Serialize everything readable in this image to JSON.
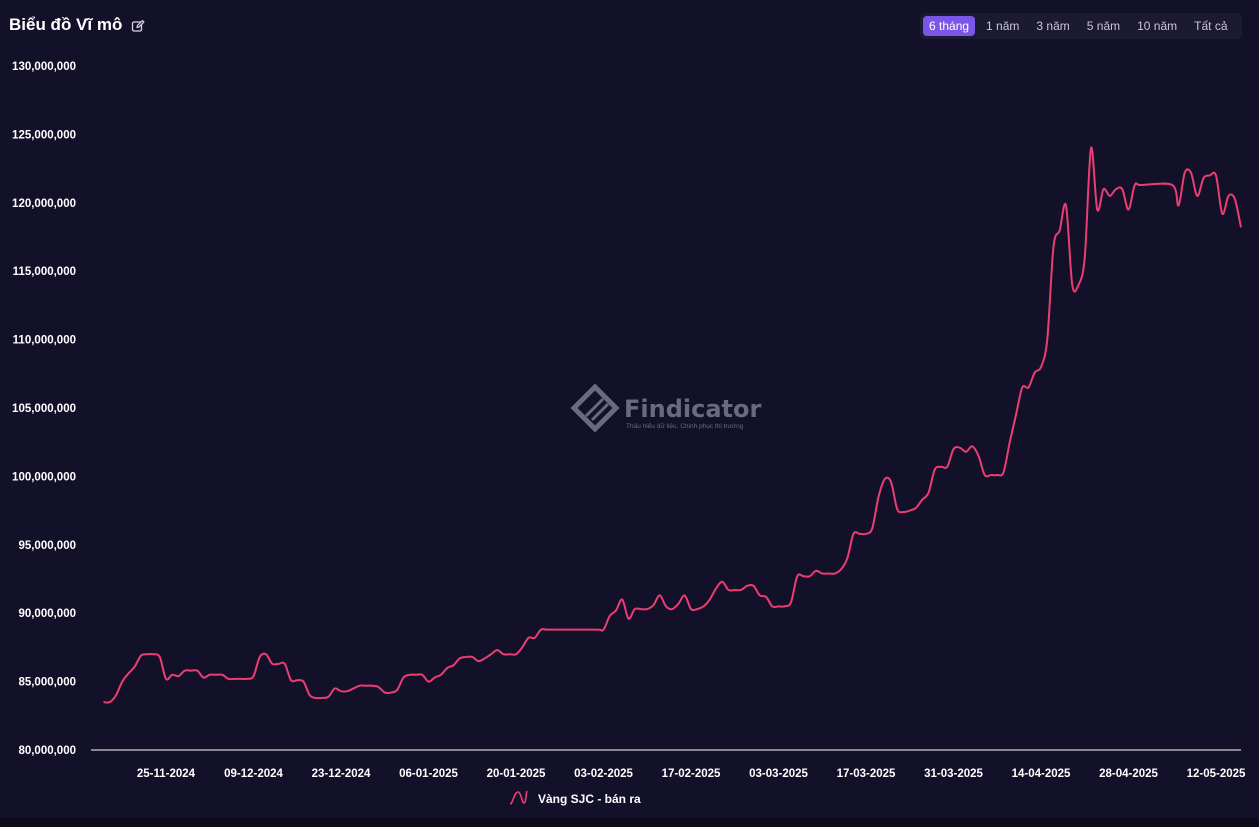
{
  "header": {
    "title": "Biểu đồ Vĩ mô",
    "edit_icon": "pencil-square-icon",
    "ranges": [
      {
        "label": "6 tháng",
        "active": true
      },
      {
        "label": "1 năm",
        "active": false
      },
      {
        "label": "3 năm",
        "active": false
      },
      {
        "label": "5 năm",
        "active": false
      },
      {
        "label": "10 năm",
        "active": false
      },
      {
        "label": "Tất cả",
        "active": false
      }
    ]
  },
  "watermark": {
    "name": "Findicator",
    "tagline": "Thấu hiểu dữ liệu, Chinh phục thị trường",
    "icon": "findicator-logo-icon"
  },
  "colors": {
    "background": "#13112a",
    "line": "#ec3d73",
    "accent": "#7b55e8"
  },
  "chart_data": {
    "type": "line",
    "title": "",
    "xlabel": "",
    "ylabel": "",
    "ylim": [
      80000000,
      130000000
    ],
    "yticks": [
      80000000,
      85000000,
      90000000,
      95000000,
      100000000,
      105000000,
      110000000,
      115000000,
      120000000,
      125000000,
      130000000
    ],
    "ytick_labels": [
      "80,000,000",
      "85,000,000",
      "90,000,000",
      "95,000,000",
      "100,000,000",
      "105,000,000",
      "110,000,000",
      "115,000,000",
      "120,000,000",
      "125,000,000",
      "130,000,000"
    ],
    "xlim": [
      "2024-11-13",
      "2025-05-16"
    ],
    "xticks": [
      "2024-11-25",
      "2024-12-09",
      "2024-12-23",
      "2025-01-06",
      "2025-01-20",
      "2025-02-03",
      "2025-02-17",
      "2025-03-03",
      "2025-03-17",
      "2025-03-31",
      "2025-04-14",
      "2025-04-28",
      "2025-05-12"
    ],
    "xtick_labels": [
      "25-11-2024",
      "09-12-2024",
      "23-12-2024",
      "06-01-2025",
      "20-01-2025",
      "03-02-2025",
      "17-02-2025",
      "03-03-2025",
      "17-03-2025",
      "31-03-2025",
      "14-04-2025",
      "28-04-2025",
      "12-05-2025"
    ],
    "grid": false,
    "legend": "bottom-center",
    "series": [
      {
        "name": "Vàng SJC - bán ra",
        "color": "#ec3d73",
        "points": [
          [
            "2024-11-15",
            83500000
          ],
          [
            "2024-11-16",
            83500000
          ],
          [
            "2024-11-17",
            84000000
          ],
          [
            "2024-11-18",
            85000000
          ],
          [
            "2024-11-19",
            85600000
          ],
          [
            "2024-11-20",
            86100000
          ],
          [
            "2024-11-21",
            86900000
          ],
          [
            "2024-11-22",
            87000000
          ],
          [
            "2024-11-23",
            87000000
          ],
          [
            "2024-11-24",
            86800000
          ],
          [
            "2024-11-25",
            85200000
          ],
          [
            "2024-11-26",
            85500000
          ],
          [
            "2024-11-27",
            85400000
          ],
          [
            "2024-11-28",
            85800000
          ],
          [
            "2024-11-29",
            85800000
          ],
          [
            "2024-11-30",
            85800000
          ],
          [
            "2024-12-01",
            85300000
          ],
          [
            "2024-12-02",
            85500000
          ],
          [
            "2024-12-03",
            85500000
          ],
          [
            "2024-12-04",
            85500000
          ],
          [
            "2024-12-05",
            85200000
          ],
          [
            "2024-12-06",
            85200000
          ],
          [
            "2024-12-07",
            85200000
          ],
          [
            "2024-12-08",
            85200000
          ],
          [
            "2024-12-09",
            85400000
          ],
          [
            "2024-12-10",
            86800000
          ],
          [
            "2024-12-11",
            87000000
          ],
          [
            "2024-12-12",
            86300000
          ],
          [
            "2024-12-13",
            86300000
          ],
          [
            "2024-12-14",
            86300000
          ],
          [
            "2024-12-15",
            85100000
          ],
          [
            "2024-12-16",
            85100000
          ],
          [
            "2024-12-17",
            85000000
          ],
          [
            "2024-12-18",
            84000000
          ],
          [
            "2024-12-19",
            83800000
          ],
          [
            "2024-12-20",
            83800000
          ],
          [
            "2024-12-21",
            83900000
          ],
          [
            "2024-12-22",
            84500000
          ],
          [
            "2024-12-23",
            84300000
          ],
          [
            "2024-12-24",
            84300000
          ],
          [
            "2024-12-25",
            84500000
          ],
          [
            "2024-12-26",
            84700000
          ],
          [
            "2024-12-27",
            84700000
          ],
          [
            "2024-12-28",
            84700000
          ],
          [
            "2024-12-29",
            84600000
          ],
          [
            "2024-12-30",
            84200000
          ],
          [
            "2024-12-31",
            84200000
          ],
          [
            "2025-01-01",
            84400000
          ],
          [
            "2025-01-02",
            85300000
          ],
          [
            "2025-01-03",
            85500000
          ],
          [
            "2025-01-04",
            85500000
          ],
          [
            "2025-01-05",
            85500000
          ],
          [
            "2025-01-06",
            85000000
          ],
          [
            "2025-01-07",
            85300000
          ],
          [
            "2025-01-08",
            85500000
          ],
          [
            "2025-01-09",
            86000000
          ],
          [
            "2025-01-10",
            86200000
          ],
          [
            "2025-01-11",
            86700000
          ],
          [
            "2025-01-12",
            86800000
          ],
          [
            "2025-01-13",
            86800000
          ],
          [
            "2025-01-14",
            86500000
          ],
          [
            "2025-01-15",
            86700000
          ],
          [
            "2025-01-16",
            87000000
          ],
          [
            "2025-01-17",
            87300000
          ],
          [
            "2025-01-18",
            87000000
          ],
          [
            "2025-01-19",
            87000000
          ],
          [
            "2025-01-20",
            87000000
          ],
          [
            "2025-01-21",
            87500000
          ],
          [
            "2025-01-22",
            88200000
          ],
          [
            "2025-01-23",
            88200000
          ],
          [
            "2025-01-24",
            88800000
          ],
          [
            "2025-01-25",
            88800000
          ],
          [
            "2025-01-28",
            88800000
          ],
          [
            "2025-02-02",
            88800000
          ],
          [
            "2025-02-03",
            88800000
          ],
          [
            "2025-02-04",
            89800000
          ],
          [
            "2025-02-05",
            90200000
          ],
          [
            "2025-02-06",
            91000000
          ],
          [
            "2025-02-07",
            89600000
          ],
          [
            "2025-02-08",
            90300000
          ],
          [
            "2025-02-09",
            90300000
          ],
          [
            "2025-02-10",
            90300000
          ],
          [
            "2025-02-11",
            90600000
          ],
          [
            "2025-02-12",
            91300000
          ],
          [
            "2025-02-13",
            90500000
          ],
          [
            "2025-02-14",
            90300000
          ],
          [
            "2025-02-15",
            90700000
          ],
          [
            "2025-02-16",
            91300000
          ],
          [
            "2025-02-17",
            90300000
          ],
          [
            "2025-02-18",
            90300000
          ],
          [
            "2025-02-19",
            90500000
          ],
          [
            "2025-02-20",
            91000000
          ],
          [
            "2025-02-21",
            91800000
          ],
          [
            "2025-02-22",
            92300000
          ],
          [
            "2025-02-23",
            91700000
          ],
          [
            "2025-02-24",
            91700000
          ],
          [
            "2025-02-25",
            91700000
          ],
          [
            "2025-02-26",
            92000000
          ],
          [
            "2025-02-27",
            92000000
          ],
          [
            "2025-02-28",
            91300000
          ],
          [
            "2025-03-01",
            91200000
          ],
          [
            "2025-03-02",
            90500000
          ],
          [
            "2025-03-03",
            90500000
          ],
          [
            "2025-03-04",
            90500000
          ],
          [
            "2025-03-05",
            90800000
          ],
          [
            "2025-03-06",
            92700000
          ],
          [
            "2025-03-07",
            92700000
          ],
          [
            "2025-03-08",
            92700000
          ],
          [
            "2025-03-09",
            93100000
          ],
          [
            "2025-03-10",
            92900000
          ],
          [
            "2025-03-11",
            92900000
          ],
          [
            "2025-03-12",
            92900000
          ],
          [
            "2025-03-13",
            93200000
          ],
          [
            "2025-03-14",
            94000000
          ],
          [
            "2025-03-15",
            95800000
          ],
          [
            "2025-03-16",
            95800000
          ],
          [
            "2025-03-17",
            95800000
          ],
          [
            "2025-03-18",
            96200000
          ],
          [
            "2025-03-19",
            98500000
          ],
          [
            "2025-03-20",
            99800000
          ],
          [
            "2025-03-21",
            99600000
          ],
          [
            "2025-03-22",
            97600000
          ],
          [
            "2025-03-23",
            97400000
          ],
          [
            "2025-03-24",
            97500000
          ],
          [
            "2025-03-25",
            97700000
          ],
          [
            "2025-03-26",
            98300000
          ],
          [
            "2025-03-27",
            98800000
          ],
          [
            "2025-03-28",
            100500000
          ],
          [
            "2025-03-29",
            100700000
          ],
          [
            "2025-03-30",
            100700000
          ],
          [
            "2025-03-31",
            102000000
          ],
          [
            "2025-04-01",
            102100000
          ],
          [
            "2025-04-02",
            101800000
          ],
          [
            "2025-04-03",
            102200000
          ],
          [
            "2025-04-04",
            101500000
          ],
          [
            "2025-04-05",
            100100000
          ],
          [
            "2025-04-06",
            100100000
          ],
          [
            "2025-04-07",
            100100000
          ],
          [
            "2025-04-08",
            100300000
          ],
          [
            "2025-04-09",
            102500000
          ],
          [
            "2025-04-10",
            104500000
          ],
          [
            "2025-04-11",
            106500000
          ],
          [
            "2025-04-12",
            106500000
          ],
          [
            "2025-04-13",
            107600000
          ],
          [
            "2025-04-14",
            108000000
          ],
          [
            "2025-04-15",
            110000000
          ],
          [
            "2025-04-16",
            116800000
          ],
          [
            "2025-04-17",
            118000000
          ],
          [
            "2025-04-18",
            119800000
          ],
          [
            "2025-04-19",
            114000000
          ],
          [
            "2025-04-20",
            114000000
          ],
          [
            "2025-04-21",
            116000000
          ],
          [
            "2025-04-22",
            124000000
          ],
          [
            "2025-04-23",
            119500000
          ],
          [
            "2025-04-24",
            121000000
          ],
          [
            "2025-04-25",
            120500000
          ],
          [
            "2025-04-26",
            121000000
          ],
          [
            "2025-04-27",
            121000000
          ],
          [
            "2025-04-28",
            119500000
          ],
          [
            "2025-04-29",
            121300000
          ],
          [
            "2025-04-30",
            121300000
          ],
          [
            "2025-05-05",
            121300000
          ],
          [
            "2025-05-06",
            119800000
          ],
          [
            "2025-05-07",
            122200000
          ],
          [
            "2025-05-08",
            122200000
          ],
          [
            "2025-05-09",
            120500000
          ],
          [
            "2025-05-10",
            121800000
          ],
          [
            "2025-05-11",
            122000000
          ],
          [
            "2025-05-12",
            122000000
          ],
          [
            "2025-05-13",
            119200000
          ],
          [
            "2025-05-14",
            120500000
          ],
          [
            "2025-05-15",
            120300000
          ],
          [
            "2025-05-16",
            118200000
          ]
        ]
      }
    ]
  }
}
